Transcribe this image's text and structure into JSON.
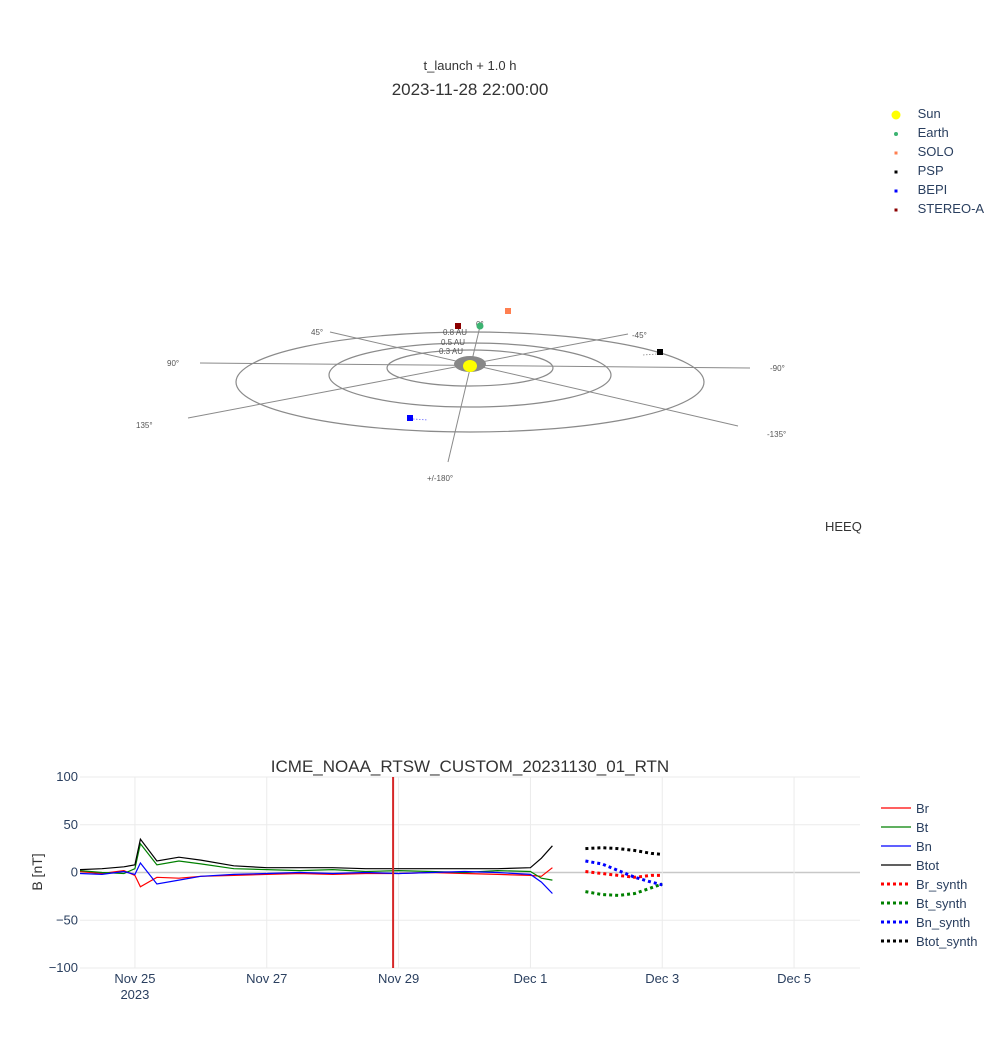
{
  "top_plot": {
    "subtitle": "t_launch + 1.0 h",
    "title": "2023-11-28 22:00:00",
    "frame_label": "HEEQ",
    "ring_labels": [
      "0.8 AU",
      "0.5 AU",
      "0.3 AU"
    ],
    "angle_labels": [
      "0°",
      "-45°",
      "-90°",
      "-135°",
      "+/-180°",
      "135°",
      "90°",
      "45°"
    ],
    "legend": [
      {
        "name": "Sun",
        "color": "#ffff00",
        "shape": "circle-large"
      },
      {
        "name": "Earth",
        "color": "#3cb371",
        "shape": "circle"
      },
      {
        "name": "SOLO",
        "color": "#ff7f50",
        "shape": "square"
      },
      {
        "name": "PSP",
        "color": "#000000",
        "shape": "square"
      },
      {
        "name": "BEPI",
        "color": "#0000ff",
        "shape": "square"
      },
      {
        "name": "STEREO-A",
        "color": "#8b0000",
        "shape": "square"
      }
    ]
  },
  "chart_data": {
    "type": "line",
    "title": "ICME_NOAA_RTSW_CUSTOM_20231130_01_RTN",
    "xlabel": "",
    "ylabel": "B [nT]",
    "ylim": [
      -100,
      100
    ],
    "yticks": [
      100,
      50,
      0,
      -50,
      -100
    ],
    "ytick_labels": [
      "100",
      "50",
      "0",
      "−50",
      "−100"
    ],
    "xlim": [
      "2023-11-24 04:00",
      "2023-12-06 00:00"
    ],
    "xticks": [
      {
        "date": "2023-11-25",
        "label": "Nov 25",
        "sublabel": "2023"
      },
      {
        "date": "2023-11-27",
        "label": "Nov 27",
        "sublabel": ""
      },
      {
        "date": "2023-11-29",
        "label": "Nov 29",
        "sublabel": ""
      },
      {
        "date": "2023-12-01",
        "label": "Dec 1",
        "sublabel": ""
      },
      {
        "date": "2023-12-03",
        "label": "Dec 3",
        "sublabel": ""
      },
      {
        "date": "2023-12-05",
        "label": "Dec 5",
        "sublabel": ""
      }
    ],
    "grid": true,
    "legend_position": "right",
    "vertical_marker": {
      "x": "2023-11-28 22:00",
      "color": "#d62728"
    },
    "series": [
      {
        "name": "Br",
        "color": "#ff0000",
        "dash": "solid",
        "x": [
          "2023-11-24 04:00",
          "2023-11-24 12:00",
          "2023-11-24 20:00",
          "2023-11-25 00:00",
          "2023-11-25 02:00",
          "2023-11-25 08:00",
          "2023-11-25 16:00",
          "2023-11-26 00:00",
          "2023-11-26 12:00",
          "2023-11-27 00:00",
          "2023-11-27 12:00",
          "2023-11-28 00:00",
          "2023-11-28 12:00",
          "2023-11-29 00:00",
          "2023-11-29 12:00",
          "2023-11-30 00:00",
          "2023-11-30 12:00",
          "2023-12-01 00:00",
          "2023-12-01 04:00",
          "2023-12-01 08:00"
        ],
        "y": [
          1,
          -1,
          2,
          -3,
          -15,
          -5,
          -6,
          -4,
          -3,
          -2,
          -1,
          -2,
          -1,
          -1,
          0,
          -1,
          -2,
          -3,
          -4,
          5
        ]
      },
      {
        "name": "Bt",
        "color": "#008000",
        "dash": "solid",
        "x": [
          "2023-11-24 04:00",
          "2023-11-24 12:00",
          "2023-11-24 20:00",
          "2023-11-25 00:00",
          "2023-11-25 02:00",
          "2023-11-25 08:00",
          "2023-11-25 16:00",
          "2023-11-26 00:00",
          "2023-11-26 12:00",
          "2023-11-27 00:00",
          "2023-11-27 12:00",
          "2023-11-28 00:00",
          "2023-11-28 12:00",
          "2023-11-29 00:00",
          "2023-11-29 12:00",
          "2023-11-30 00:00",
          "2023-11-30 12:00",
          "2023-12-01 00:00",
          "2023-12-01 04:00",
          "2023-12-01 08:00"
        ],
        "y": [
          2,
          0,
          -1,
          4,
          30,
          8,
          12,
          9,
          4,
          3,
          2,
          3,
          1,
          2,
          1,
          0,
          2,
          1,
          -6,
          -8
        ]
      },
      {
        "name": "Bn",
        "color": "#0000ff",
        "dash": "solid",
        "x": [
          "2023-11-24 04:00",
          "2023-11-24 12:00",
          "2023-11-24 20:00",
          "2023-11-25 00:00",
          "2023-11-25 02:00",
          "2023-11-25 08:00",
          "2023-11-25 16:00",
          "2023-11-26 00:00",
          "2023-11-26 12:00",
          "2023-11-27 00:00",
          "2023-11-27 12:00",
          "2023-11-28 00:00",
          "2023-11-28 12:00",
          "2023-11-29 00:00",
          "2023-11-29 12:00",
          "2023-11-30 00:00",
          "2023-11-30 12:00",
          "2023-12-01 00:00",
          "2023-12-01 04:00",
          "2023-12-01 08:00"
        ],
        "y": [
          -1,
          -2,
          1,
          -2,
          10,
          -12,
          -8,
          -4,
          -2,
          -1,
          0,
          -1,
          0,
          -1,
          0,
          1,
          0,
          -2,
          -10,
          -22
        ]
      },
      {
        "name": "Btot",
        "color": "#000000",
        "dash": "solid",
        "x": [
          "2023-11-24 04:00",
          "2023-11-24 12:00",
          "2023-11-24 20:00",
          "2023-11-25 00:00",
          "2023-11-25 02:00",
          "2023-11-25 08:00",
          "2023-11-25 16:00",
          "2023-11-26 00:00",
          "2023-11-26 12:00",
          "2023-11-27 00:00",
          "2023-11-27 12:00",
          "2023-11-28 00:00",
          "2023-11-28 12:00",
          "2023-11-29 00:00",
          "2023-11-29 12:00",
          "2023-11-30 00:00",
          "2023-11-30 12:00",
          "2023-12-01 00:00",
          "2023-12-01 04:00",
          "2023-12-01 08:00"
        ],
        "y": [
          3,
          4,
          6,
          8,
          35,
          12,
          16,
          13,
          7,
          5,
          5,
          5,
          4,
          4,
          4,
          4,
          4,
          5,
          15,
          28
        ]
      },
      {
        "name": "Br_synth",
        "color": "#ff0000",
        "dash": "dot",
        "x": [
          "2023-12-01 20:00",
          "2023-12-02 02:00",
          "2023-12-02 08:00",
          "2023-12-02 14:00",
          "2023-12-02 20:00",
          "2023-12-03 00:00"
        ],
        "y": [
          1,
          -1,
          -3,
          -5,
          -3,
          -3
        ]
      },
      {
        "name": "Bt_synth",
        "color": "#008000",
        "dash": "dot",
        "x": [
          "2023-12-01 20:00",
          "2023-12-02 02:00",
          "2023-12-02 08:00",
          "2023-12-02 14:00",
          "2023-12-02 20:00",
          "2023-12-03 00:00"
        ],
        "y": [
          -20,
          -23,
          -24,
          -22,
          -16,
          -12
        ]
      },
      {
        "name": "Bn_synth",
        "color": "#0000ff",
        "dash": "dot",
        "x": [
          "2023-12-01 20:00",
          "2023-12-02 02:00",
          "2023-12-02 08:00",
          "2023-12-02 14:00",
          "2023-12-02 20:00",
          "2023-12-03 00:00"
        ],
        "y": [
          12,
          9,
          2,
          -5,
          -10,
          -13
        ]
      },
      {
        "name": "Btot_synth",
        "color": "#000000",
        "dash": "dot",
        "x": [
          "2023-12-01 20:00",
          "2023-12-02 02:00",
          "2023-12-02 08:00",
          "2023-12-02 14:00",
          "2023-12-02 20:00",
          "2023-12-03 00:00"
        ],
        "y": [
          25,
          26,
          25,
          23,
          20,
          19
        ]
      }
    ]
  }
}
